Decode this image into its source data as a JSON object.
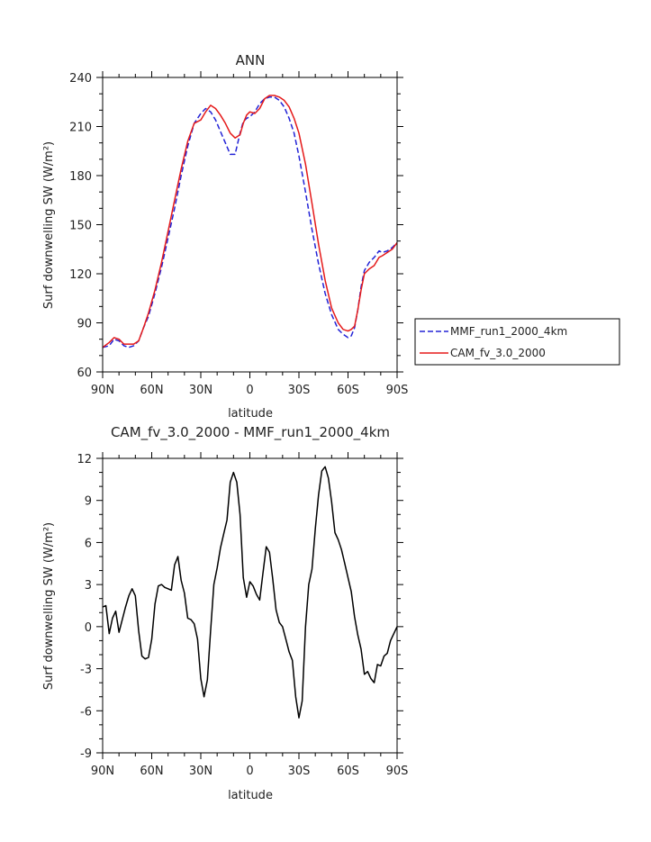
{
  "chart_data": [
    {
      "type": "line",
      "title": "ANN",
      "xlabel": "latitude",
      "ylabel": "Surf downwelling SW (W/m²)",
      "xlim": [
        -90,
        90
      ],
      "ylim": [
        60,
        240
      ],
      "x_tick_values": [
        -90,
        -60,
        -30,
        0,
        30,
        60,
        90
      ],
      "x_tick_labels": [
        "90N",
        "60N",
        "30N",
        "0",
        "30S",
        "60S",
        "90S"
      ],
      "y_ticks": [
        60,
        90,
        120,
        150,
        180,
        210,
        240
      ],
      "legend_position": "right",
      "series": [
        {
          "name": "MMF_run1_2000_4km",
          "color": "#2323d6",
          "dash": "dashed",
          "x": [
            -90,
            -86,
            -83,
            -80,
            -77,
            -74,
            -71,
            -68,
            -65,
            -62,
            -58,
            -54,
            -50,
            -46,
            -42,
            -38,
            -34,
            -30,
            -27,
            -24,
            -21,
            -18,
            -15,
            -12,
            -9,
            -6,
            -4,
            -2,
            0,
            3,
            6,
            9,
            12,
            15,
            18,
            21,
            24,
            27,
            30,
            34,
            38,
            42,
            46,
            50,
            54,
            57,
            60,
            62,
            64,
            66,
            68,
            70,
            73,
            76,
            79,
            81,
            84,
            87,
            90
          ],
          "y": [
            75,
            76,
            80,
            79,
            76,
            75,
            76,
            79,
            87,
            94,
            108,
            124,
            142,
            160,
            180,
            198,
            212,
            218,
            221,
            219,
            214,
            207,
            200,
            193,
            193,
            206,
            213,
            215,
            216,
            219,
            224,
            227,
            228,
            228,
            226,
            222,
            215,
            206,
            192,
            170,
            147,
            126,
            108,
            95,
            86,
            83,
            81,
            82,
            87,
            98,
            112,
            122,
            127,
            130,
            134,
            133,
            134,
            136,
            139
          ]
        },
        {
          "name": "CAM_fv_3.0_2000",
          "color": "#e51a1a",
          "dash": "solid",
          "x": [
            -90,
            -86,
            -83,
            -80,
            -77,
            -74,
            -71,
            -68,
            -65,
            -62,
            -58,
            -54,
            -50,
            -46,
            -42,
            -38,
            -34,
            -30,
            -27,
            -24,
            -21,
            -18,
            -15,
            -12,
            -9,
            -6,
            -4,
            -2,
            0,
            3,
            6,
            9,
            12,
            15,
            18,
            21,
            24,
            27,
            30,
            34,
            38,
            42,
            46,
            50,
            54,
            57,
            60,
            62,
            64,
            66,
            68,
            70,
            73,
            76,
            79,
            81,
            84,
            87,
            90
          ],
          "y": [
            75,
            78,
            81,
            80,
            77,
            77,
            77,
            79,
            87,
            96,
            110,
            127,
            146,
            165,
            184,
            201,
            212,
            214,
            219,
            223,
            221,
            217,
            212,
            206,
            203,
            205,
            212,
            217,
            219,
            218,
            221,
            227,
            229,
            229,
            228,
            226,
            222,
            215,
            206,
            187,
            163,
            138,
            116,
            99,
            90,
            86,
            85,
            86,
            88,
            98,
            110,
            120,
            123,
            125,
            130,
            131,
            133,
            135,
            139
          ]
        }
      ]
    },
    {
      "type": "line",
      "title": "CAM_fv_3.0_2000 - MMF_run1_2000_4km",
      "xlabel": "latitude",
      "ylabel": "Surf downwelling SW (W/m²)",
      "xlim": [
        -90,
        90
      ],
      "ylim": [
        -9,
        12
      ],
      "x_tick_values": [
        -90,
        -60,
        -30,
        0,
        30,
        60,
        90
      ],
      "x_tick_labels": [
        "90N",
        "60N",
        "30N",
        "0",
        "30S",
        "60S",
        "90S"
      ],
      "y_ticks": [
        -9,
        -6,
        -3,
        0,
        3,
        6,
        9,
        12
      ],
      "series": [
        {
          "color": "#000000",
          "dash": "solid",
          "x": [
            -90,
            -88,
            -86,
            -84,
            -82,
            -80,
            -78,
            -76,
            -74,
            -72,
            -70,
            -68,
            -66,
            -64,
            -62,
            -60,
            -58,
            -56,
            -54,
            -52,
            -50,
            -48,
            -46,
            -44,
            -42,
            -40,
            -38,
            -36,
            -34,
            -32,
            -30,
            -28,
            -26,
            -24,
            -22,
            -20,
            -18,
            -16,
            -14,
            -12,
            -10,
            -8,
            -6,
            -4,
            -2,
            0,
            2,
            4,
            6,
            8,
            10,
            12,
            14,
            16,
            18,
            20,
            22,
            24,
            26,
            28,
            30,
            32,
            34,
            36,
            38,
            40,
            42,
            44,
            46,
            48,
            50,
            52,
            54,
            56,
            58,
            60,
            62,
            64,
            66,
            68,
            70,
            72,
            74,
            76,
            78,
            80,
            82,
            84,
            86,
            88,
            90
          ],
          "y": [
            1.4,
            1.5,
            -0.5,
            0.6,
            1.1,
            -0.4,
            0.5,
            1.4,
            2.2,
            2.7,
            2.2,
            -0.3,
            -2.1,
            -2.3,
            -2.2,
            -0.9,
            1.6,
            2.9,
            3.0,
            2.8,
            2.7,
            2.6,
            4.4,
            5.0,
            3.3,
            2.4,
            0.6,
            0.5,
            0.2,
            -0.9,
            -3.7,
            -5.0,
            -3.8,
            -0.3,
            3.0,
            4.2,
            5.6,
            6.6,
            7.6,
            10.3,
            11.0,
            10.3,
            8.0,
            3.5,
            2.1,
            3.2,
            2.9,
            2.3,
            1.9,
            3.8,
            5.7,
            5.3,
            3.4,
            1.2,
            0.3,
            0.0,
            -0.9,
            -1.8,
            -2.4,
            -5.0,
            -6.5,
            -5.3,
            0.0,
            3.0,
            4.1,
            7.0,
            9.4,
            11.1,
            11.4,
            10.6,
            8.9,
            6.7,
            6.2,
            5.5,
            4.5,
            3.5,
            2.5,
            0.7,
            -0.6,
            -1.6,
            -3.4,
            -3.2,
            -3.7,
            -4.0,
            -2.7,
            -2.8,
            -2.1,
            -1.9,
            -1.0,
            -0.5,
            0.0
          ]
        }
      ]
    }
  ]
}
